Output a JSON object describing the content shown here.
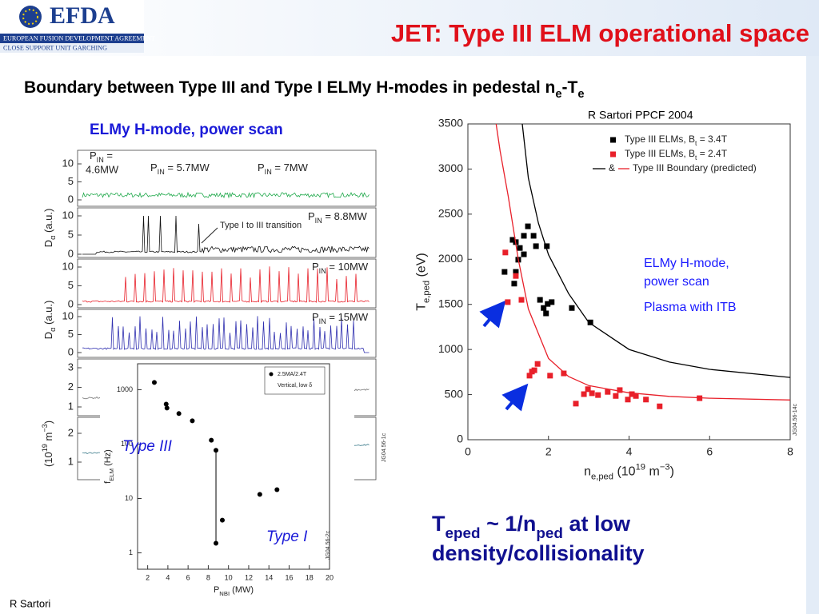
{
  "header": {
    "logo": "EFDA",
    "org": "EUROPEAN FUSION DEVELOPMENT AGREEMENT",
    "unit": "CLOSE SUPPORT UNIT GARCHING"
  },
  "title": "JET: Type III ELM operational space",
  "subtitle": [
    "Boundary between Type III and Type I ELMy H-modes in pedestal n",
    {
      "sub": "e"
    },
    "-T",
    {
      "sub": "e"
    }
  ],
  "citation": "R Sartori PPCF 2004",
  "panel": {
    "heading": "ELMy H-mode, power scan",
    "plots": [
      {
        "ticks": [
          0,
          5,
          10
        ],
        "labels": [
          [
            "P",
            {
              "sub": "IN"
            },
            " ="
          ],
          "4.6MW",
          [
            "P",
            {
              "sub": "IN"
            },
            " = 5.7MW"
          ],
          [
            "P",
            {
              "sub": "IN"
            },
            " = 7MW"
          ]
        ]
      },
      {
        "ticks": [
          0,
          5,
          10
        ],
        "labels": [
          [
            "P",
            {
              "sub": "IN"
            },
            " = 8.8MW"
          ],
          "Type I to III transition"
        ]
      },
      {
        "ticks": [
          0,
          5,
          10
        ],
        "labels": [
          [
            "P",
            {
              "sub": "IN"
            },
            " = 10MW"
          ]
        ]
      },
      {
        "ticks": [
          0,
          5,
          10
        ],
        "labels": [
          [
            "P",
            {
              "sub": "IN"
            },
            " = 15MW"
          ]
        ]
      },
      {
        "ticks": [
          1,
          2,
          3
        ]
      },
      {
        "ticks": [
          1,
          2
        ]
      }
    ],
    "ylabels": [
      [
        "D",
        {
          "sub": "α"
        },
        " (a.u.)"
      ],
      [
        "D",
        {
          "sub": "α"
        },
        " (a.u.)"
      ],
      [
        "(10",
        {
          "sup": "19"
        },
        " m",
        {
          "sup": "−3"
        },
        ")"
      ]
    ],
    "id": "JG04.56-1c"
  },
  "conclusion": [
    [
      "T",
      {
        "sub": "eped"
      },
      " ~ 1/n",
      {
        "sub": "ped"
      },
      " at low"
    ],
    "density/collisionality"
  ],
  "footer": "R Sartori",
  "chart_data": [
    {
      "type": "scatter",
      "xlabel": [
        "n",
        {
          "sub": "e,ped"
        },
        " (10",
        {
          "sup": "19"
        },
        " m",
        {
          "sup": "−3"
        },
        ")"
      ],
      "ylabel": [
        "T",
        {
          "sub": "e,ped"
        },
        " (eV)"
      ],
      "xlim": [
        0,
        8
      ],
      "xticks": [
        0,
        2,
        4,
        6,
        8
      ],
      "ylim": [
        0,
        3500
      ],
      "yticks": [
        0,
        500,
        1000,
        1500,
        2000,
        2500,
        3000,
        3500
      ],
      "legend": "top-right",
      "series": [
        {
          "name": [
            "Type III ELMs, B",
            {
              "sub": "t"
            },
            " = 3.4T"
          ],
          "color": "#000000",
          "marker": "square",
          "x": [
            0.91,
            1.11,
            1.19,
            1.29,
            1.25,
            1.39,
            1.49,
            1.63,
            1.69,
            1.96,
            1.19,
            1.39,
            1.79,
            1.88,
            1.98,
            1.94,
            2.08,
            2.58,
            3.04,
            1.15
          ],
          "values": [
            1860,
            2215,
            2190,
            2125,
            1995,
            2260,
            2365,
            2260,
            2145,
            2145,
            1860,
            2055,
            1550,
            1460,
            1505,
            1400,
            1525,
            1460,
            1300,
            1730
          ]
        },
        {
          "name": [
            "Type III ELMs, B",
            {
              "sub": "t"
            },
            " = 2.4T"
          ],
          "color": "#e8202a",
          "marker": "square",
          "x": [
            0.93,
            1.19,
            0.99,
            1.33,
            1.53,
            1.65,
            1.73,
            1.59,
            2.04,
            2.38,
            2.68,
            2.98,
            3.08,
            3.23,
            3.47,
            3.67,
            3.77,
            4.07,
            4.17,
            4.42,
            4.76,
            5.75,
            2.88,
            3.97
          ],
          "values": [
            2075,
            1815,
            1525,
            1550,
            710,
            770,
            840,
            755,
            710,
            735,
            400,
            560,
            515,
            495,
            530,
            485,
            550,
            505,
            485,
            445,
            370,
            460,
            505,
            445
          ]
        },
        {
          "color": "#000000",
          "marker": "line",
          "x": [
            1.35,
            1.5,
            1.75,
            2,
            2.5,
            3,
            4,
            5,
            6,
            8
          ],
          "values": [
            3500,
            2900,
            2400,
            2050,
            1620,
            1300,
            1000,
            860,
            780,
            690
          ]
        },
        {
          "color": "#e8202a",
          "marker": "line",
          "x": [
            0.7,
            0.8,
            1,
            1.25,
            1.5,
            2,
            2.5,
            3,
            4,
            5,
            6,
            8
          ],
          "values": [
            3500,
            3200,
            2700,
            2000,
            1450,
            900,
            700,
            600,
            520,
            480,
            460,
            440
          ]
        }
      ],
      "legend_connector": "&",
      "boundary_label": "Type III Boundary (predicted)",
      "annotations": [
        "ELMy H-mode,",
        "power scan",
        "Plasma with ITB"
      ],
      "id": "JG04.56-14c"
    },
    {
      "type": "scatter",
      "log_y": true,
      "xlabel": [
        "P",
        {
          "sub": "NBI"
        },
        " (MW)"
      ],
      "ylabel": [
        "f",
        {
          "sub": "ELM"
        },
        " (Hz)"
      ],
      "xlim": [
        1,
        20
      ],
      "xticks": [
        2,
        4,
        6,
        8,
        10,
        12,
        14,
        16,
        18,
        20
      ],
      "ylim": [
        0.5,
        3000
      ],
      "yticks": [
        1,
        10,
        100,
        1000
      ],
      "legend": "top-right",
      "series": [
        {
          "name": "2.5MA/2.4T",
          "color": "#000000",
          "marker": "circle",
          "x": [
            2.66,
            3.83,
            3.91,
            5.09,
            6.42,
            8.3,
            8.76,
            9.39,
            8.76,
            13.1,
            14.8
          ],
          "values": [
            1360,
            542,
            460,
            364,
            268,
            118,
            77,
            4,
            1.5,
            11.9,
            14.5
          ]
        }
      ],
      "legend_note": "Vertical, low δ",
      "annotations": [
        "Type III",
        "Type I"
      ],
      "id": "JG04.56-2c"
    }
  ]
}
